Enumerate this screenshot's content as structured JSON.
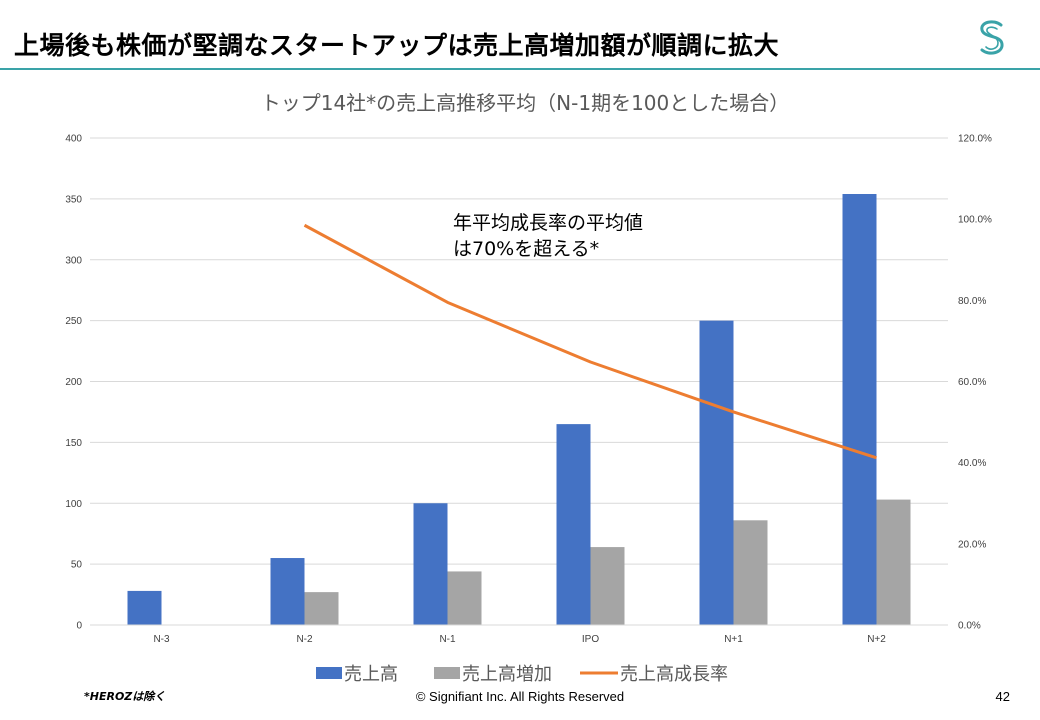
{
  "slide": {
    "title": "上場後も株価が堅調なスタートアップは売上高増加額が順調に拡大",
    "logo_icon": "signifiant-s-logo-icon",
    "footnote": "*HEROZは除く",
    "copyright": "© Signifiant Inc. All Rights Reserved",
    "page_number": "42"
  },
  "colors": {
    "accent": "#3aa3a8",
    "bar_revenue": "#4472c4",
    "bar_increase": "#a5a5a5",
    "line_growth": "#ed7d31"
  },
  "chart_data": {
    "type": "bar",
    "title": "トップ14社*の売上高推移平均（N-1期を100とした場合）",
    "categories": [
      "N-3",
      "N-2",
      "N-1",
      "IPO",
      "N+1",
      "N+2"
    ],
    "series": [
      {
        "name": "売上高",
        "kind": "bar",
        "axis": "left",
        "values": [
          28,
          55,
          100,
          165,
          250,
          354
        ]
      },
      {
        "name": "売上高増加",
        "kind": "bar",
        "axis": "left",
        "values": [
          null,
          27,
          44,
          64,
          86,
          103
        ]
      },
      {
        "name": "売上高成長率",
        "kind": "line",
        "axis": "right",
        "values": [
          null,
          98.5,
          79.5,
          64.8,
          52.5,
          41.2
        ]
      }
    ],
    "y_left": {
      "min": 0,
      "max": 400,
      "step": 50,
      "ticks": [
        "0",
        "50",
        "100",
        "150",
        "200",
        "250",
        "300",
        "350",
        "400"
      ]
    },
    "y_right": {
      "min": 0,
      "max": 120,
      "step": 20,
      "ticks": [
        "0.0%",
        "20.0%",
        "40.0%",
        "60.0%",
        "80.0%",
        "100.0%",
        "120.0%"
      ]
    },
    "annotation": [
      "年平均成長率の平均値",
      "は70%を超える*"
    ],
    "legend_position": "bottom",
    "grid": true
  }
}
